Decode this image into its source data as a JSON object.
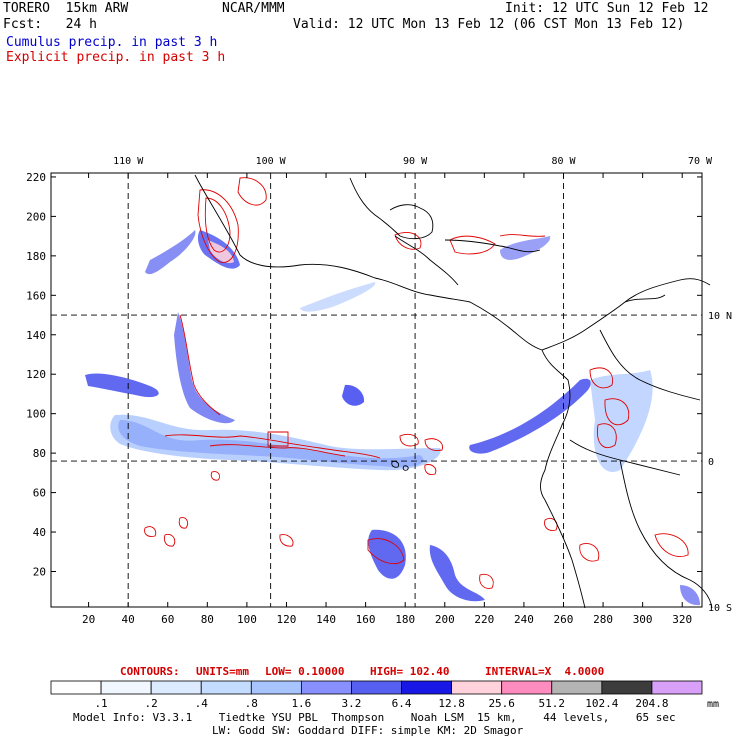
{
  "header": {
    "model": "TORERO  15km ARW",
    "org": "NCAR/MMM",
    "init": "Init: 12 UTC Sun 12 Feb 12",
    "fcst": "Fcst:   24 h",
    "valid": "Valid: 12 UTC Mon 13 Feb 12 (06 CST Mon 13 Feb 12)",
    "legend_cumulus": "Cumulus precip. in past 3 h",
    "legend_explicit": "Explicit precip. in past 3 h"
  },
  "colors": {
    "cumulus_text": "#0000cc",
    "explicit_text": "#d40000",
    "contour": "#e00000",
    "land": "#000000"
  },
  "chart_data": {
    "type": "map",
    "title": "Cumulus precip. in past 3 h / Explicit precip. in past 3 h",
    "x_grid": {
      "range": [
        1,
        330
      ],
      "ticks": [
        20,
        40,
        60,
        80,
        100,
        120,
        140,
        160,
        180,
        200,
        220,
        240,
        260,
        280,
        300,
        320
      ]
    },
    "y_grid": {
      "range": [
        2,
        222
      ],
      "ticks": [
        20,
        40,
        60,
        80,
        100,
        120,
        140,
        160,
        180,
        200,
        220
      ]
    },
    "longitude_labels": [
      {
        "label": "110 W",
        "x": 40
      },
      {
        "label": "100 W",
        "x": 112
      },
      {
        "label": "90 W",
        "x": 185
      },
      {
        "label": "80 W",
        "x": 260
      },
      {
        "label": "70 W",
        "x": 333
      }
    ],
    "latitude_labels": [
      {
        "label": "10 N",
        "y": 150
      },
      {
        "label": "0",
        "y": 76
      },
      {
        "label": "10 S",
        "y": 2
      }
    ],
    "meridians_x": [
      40,
      112,
      185,
      260
    ],
    "parallels_y": [
      150,
      76
    ],
    "contour_info": {
      "label": "CONTOURS:",
      "units": "UNITS=mm",
      "low": "LOW= 0.10000",
      "high": "HIGH= 102.40",
      "interval": "INTERVAL=X  4.0000"
    },
    "colorbar": {
      "unit": "mm",
      "labels": [
        ".1",
        ".2",
        ".4",
        ".8",
        "1.6",
        "3.2",
        "6.4",
        "12.8",
        "25.6",
        "51.2",
        "102.4",
        "204.8"
      ],
      "colors": [
        "#ffffff",
        "#f0f7ff",
        "#dcebff",
        "#c4dcff",
        "#a8c4ff",
        "#8890ff",
        "#5560f0",
        "#1818e6",
        "#ffd2dc",
        "#ff8cbe",
        "#b4b4b4",
        "#3c3c3c",
        "#d8a0f8"
      ]
    }
  },
  "footer": {
    "line1": "Model Info: V3.3.1    Tiedtke YSU PBL  Thompson    Noah LSM  15 km,    44 levels,    65 sec",
    "line2": "LW: Godd SW: Goddard DIFF: simple KM: 2D Smagor"
  }
}
